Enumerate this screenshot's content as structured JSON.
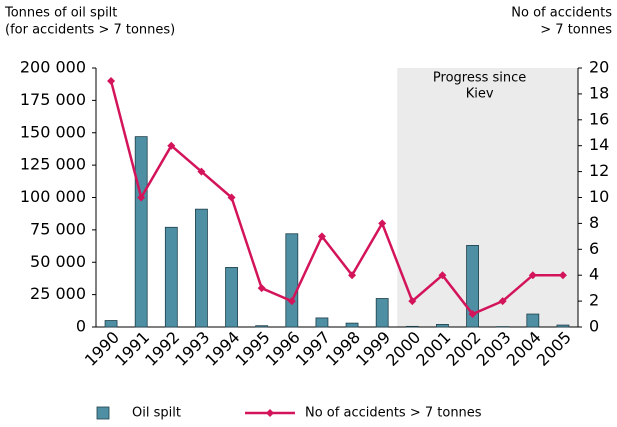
{
  "chart_data": {
    "type": "bar",
    "y_label": [
      "Tonnes of oil spilt",
      "(for accidents > 7 tonnes)"
    ],
    "y2_label": [
      "No of accidents",
      "> 7 tonnes"
    ],
    "categories": [
      "1990",
      "1991",
      "1992",
      "1993",
      "1994",
      "1995",
      "1996",
      "1997",
      "1998",
      "1999",
      "2000",
      "2001",
      "2002",
      "2003",
      "2004",
      "2005"
    ],
    "series": [
      {
        "name": "Oil spilt",
        "type": "bar",
        "color": "#4f8fa3",
        "values": [
          5000,
          147000,
          77000,
          91000,
          46000,
          1000,
          72000,
          7000,
          3000,
          22000,
          500,
          2000,
          63000,
          300,
          10000,
          1500
        ]
      },
      {
        "name": "No of accidents > 7 tonnes",
        "type": "line",
        "axis": "y2",
        "color": "#d4145a",
        "values": [
          19,
          10,
          14,
          12,
          10,
          3,
          2,
          7,
          4,
          8,
          2,
          4,
          1,
          2,
          4,
          4
        ]
      }
    ],
    "ylim": [
      0,
      200000
    ],
    "yticks": [
      0,
      {
        "value": 25000,
        "label": "25 000"
      },
      {
        "value": 50000,
        "label": "50 000"
      },
      {
        "value": 75000,
        "label": "75 000"
      },
      {
        "value": 100000,
        "label": "100 000"
      },
      {
        "value": 125000,
        "label": "125 000"
      },
      {
        "value": 150000,
        "label": "150 000"
      },
      {
        "value": 175000,
        "label": "175 000"
      },
      {
        "value": 200000,
        "label": "200 000"
      }
    ],
    "y2lim": [
      0,
      20
    ],
    "y2ticks": [
      0,
      2,
      4,
      6,
      8,
      10,
      12,
      14,
      16,
      18,
      20
    ],
    "annotation": {
      "text": [
        "Progress since",
        "Kiev"
      ],
      "x_range": [
        "2000",
        "2005"
      ],
      "color": "#ebebeb"
    },
    "legend": "bottom"
  }
}
